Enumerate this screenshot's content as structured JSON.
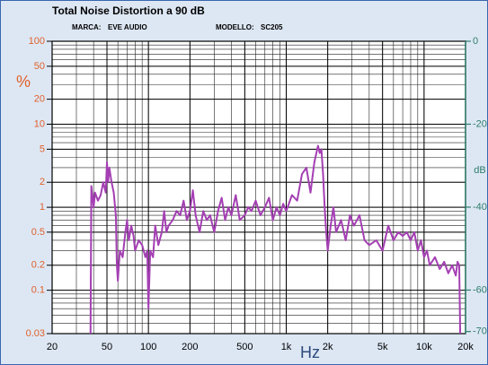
{
  "chart_data": {
    "type": "line",
    "title": "Total Noise Distortion a 90 dB",
    "brand_label": "MARCA:",
    "brand": "EVE AUDIO",
    "model_label": "MODELLO:",
    "model": "SC205",
    "ylabel": "%",
    "xlabel": "Hz",
    "y2label": "dB",
    "x": [
      38,
      38.5,
      40,
      41,
      43,
      45,
      47,
      49,
      50,
      51,
      52,
      54,
      56,
      58,
      59,
      60,
      62,
      65,
      68,
      70,
      72,
      75,
      78,
      80,
      85,
      90,
      95,
      98,
      100,
      103,
      108,
      112,
      118,
      125,
      130,
      135,
      140,
      150,
      160,
      170,
      180,
      190,
      200,
      210,
      220,
      235,
      250,
      265,
      280,
      300,
      320,
      340,
      360,
      380,
      400,
      430,
      460,
      500,
      530,
      560,
      600,
      650,
      700,
      750,
      800,
      850,
      900,
      950,
      1000,
      1100,
      1200,
      1300,
      1400,
      1500,
      1600,
      1700,
      1750,
      1800,
      1850,
      1900,
      1950,
      2000,
      2100,
      2200,
      2300,
      2500,
      2700,
      2900,
      3100,
      3400,
      3700,
      4000,
      4500,
      5000,
      5500,
      6000,
      6500,
      7000,
      7500,
      8000,
      8500,
      9000,
      9500,
      10000,
      10500,
      11000,
      12000,
      13000,
      14000,
      15000,
      16000,
      17000,
      17500,
      18000,
      18300
    ],
    "series": [
      {
        "color": "#a43fb3",
        "values": [
          0.03,
          1.8,
          1.0,
          1.5,
          1.2,
          1.4,
          2.0,
          1.5,
          3.5,
          2.0,
          3.0,
          2.0,
          1.5,
          0.8,
          0.2,
          0.13,
          0.3,
          0.25,
          0.5,
          0.7,
          0.4,
          0.6,
          0.45,
          0.3,
          0.4,
          0.35,
          0.25,
          0.3,
          0.06,
          0.3,
          0.25,
          0.6,
          0.35,
          0.5,
          0.9,
          0.5,
          0.6,
          0.7,
          0.9,
          0.8,
          1.2,
          0.7,
          0.9,
          1.6,
          0.8,
          0.5,
          0.9,
          0.7,
          0.8,
          0.5,
          0.9,
          1.3,
          0.7,
          1.0,
          0.8,
          1.4,
          0.7,
          0.8,
          1.0,
          0.9,
          1.2,
          0.8,
          1.0,
          1.3,
          0.7,
          1.0,
          0.8,
          1.1,
          0.9,
          1.4,
          1.2,
          2.5,
          3.0,
          1.5,
          3.5,
          5.5,
          4.5,
          5.0,
          2.5,
          1.0,
          0.5,
          0.3,
          0.6,
          1.0,
          0.5,
          0.7,
          0.4,
          0.8,
          0.6,
          0.8,
          0.4,
          0.35,
          0.4,
          0.3,
          0.6,
          0.4,
          0.5,
          0.45,
          0.5,
          0.4,
          0.5,
          0.3,
          0.4,
          0.25,
          0.3,
          0.2,
          0.25,
          0.18,
          0.22,
          0.16,
          0.2,
          0.15,
          0.22,
          0.2,
          0.03
        ]
      }
    ],
    "xlim": [
      20,
      20000
    ],
    "xticks": [
      20,
      50,
      100,
      200,
      500,
      {
        "value": 1000,
        "label": "1k"
      },
      {
        "value": 2000,
        "label": "2k"
      },
      {
        "value": 5000,
        "label": "5k"
      },
      {
        "value": 10000,
        "label": "10k"
      },
      {
        "value": 20000,
        "label": "20k"
      }
    ],
    "ylim": [
      0.03,
      100
    ],
    "yticks": [
      100,
      50,
      20,
      10,
      5,
      2,
      1,
      0.5,
      0.2,
      0.1,
      0.03
    ],
    "y2lim": [
      -70.5,
      0
    ],
    "y2ticks": [
      0,
      -20,
      -40,
      -60,
      -70
    ],
    "xscale": "log",
    "yscale": "log",
    "grid": true
  }
}
